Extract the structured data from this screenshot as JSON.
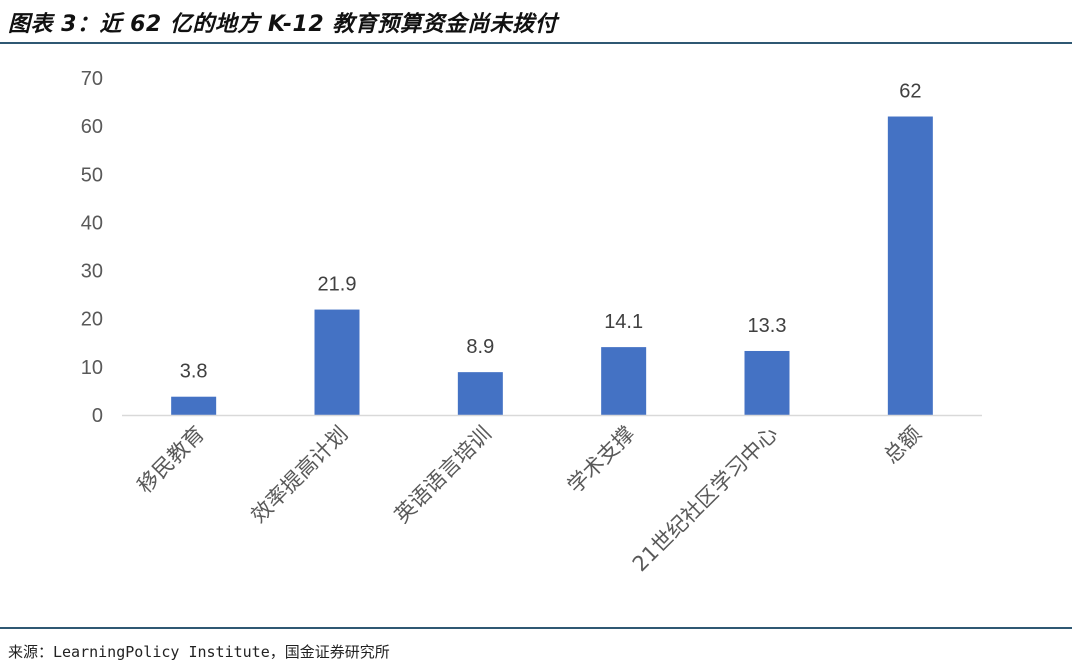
{
  "header": {
    "title": "图表 3：近 62 亿的地方 K-12 教育预算资金尚未拨付"
  },
  "footer": {
    "source": "来源：LearningPolicy Institute，国金证券研究所"
  },
  "colors": {
    "bar": "#4472c4",
    "rule": "#2f5873",
    "axis_text": "#595959",
    "label_text": "#404040"
  },
  "chart_data": {
    "type": "bar",
    "title": "",
    "xlabel": "",
    "ylabel": "",
    "categories": [
      "移民教育",
      "效率提高计划",
      "英语语言培训",
      "学术支撑",
      "21世纪社区学习中心",
      "总额"
    ],
    "values": [
      3.8,
      21.9,
      8.9,
      14.1,
      13.3,
      62
    ],
    "value_labels": [
      "3.8",
      "21.9",
      "8.9",
      "14.1",
      "13.3",
      "62"
    ],
    "ylim": [
      0,
      70
    ],
    "yticks": [
      "0",
      "10",
      "20",
      "30",
      "40",
      "50",
      "60",
      "70"
    ],
    "grid": false,
    "legend": "none"
  }
}
